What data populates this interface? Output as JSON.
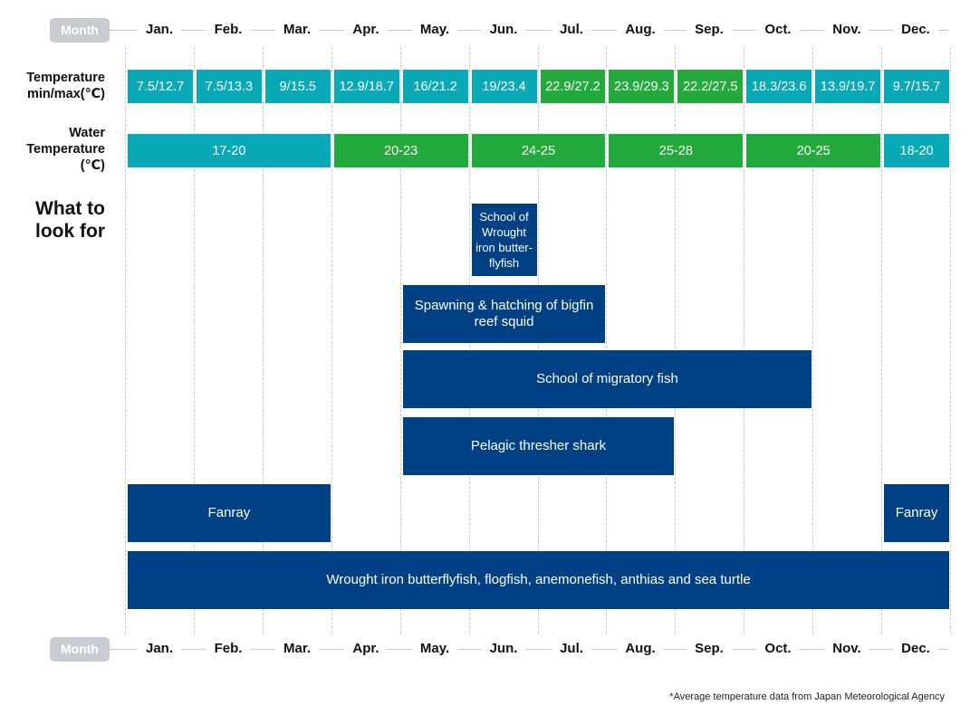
{
  "chart_data": {
    "type": "table",
    "month_tag": "Month",
    "months": [
      "Jan.",
      "Feb.",
      "Mar.",
      "Apr.",
      "May.",
      "Jun.",
      "Jul.",
      "Aug.",
      "Sep.",
      "Oct.",
      "Nov.",
      "Dec."
    ],
    "rows": {
      "temperature": {
        "label": "Temperature min/max(℃)",
        "cells": [
          {
            "text": "7.5/12.7",
            "start": 1,
            "end": 1,
            "color": "#0aa9b8"
          },
          {
            "text": "7.5/13.3",
            "start": 2,
            "end": 2,
            "color": "#0aa9b8"
          },
          {
            "text": "9/15.5",
            "start": 3,
            "end": 3,
            "color": "#0aa9b8"
          },
          {
            "text": "12.9/18.7",
            "start": 4,
            "end": 4,
            "color": "#0aa9b8"
          },
          {
            "text": "16/21.2",
            "start": 5,
            "end": 5,
            "color": "#0aa9b8"
          },
          {
            "text": "19/23.4",
            "start": 6,
            "end": 6,
            "color": "#0aa9b8"
          },
          {
            "text": "22.9/27.2",
            "start": 7,
            "end": 7,
            "color": "#22aa3c"
          },
          {
            "text": "23.9/29.3",
            "start": 8,
            "end": 8,
            "color": "#22aa3c"
          },
          {
            "text": "22.2/27.5",
            "start": 9,
            "end": 9,
            "color": "#22aa3c"
          },
          {
            "text": "18.3/23.6",
            "start": 10,
            "end": 10,
            "color": "#0aa9b8"
          },
          {
            "text": "13.9/19.7",
            "start": 11,
            "end": 11,
            "color": "#0aa9b8"
          },
          {
            "text": "9.7/15.7",
            "start": 12,
            "end": 12,
            "color": "#0aa9b8"
          }
        ]
      },
      "water_temperature": {
        "label": "Water Temperature (℃)",
        "cells": [
          {
            "text": "17-20",
            "start": 1,
            "end": 3,
            "color": "#0aa9b8"
          },
          {
            "text": "20-23",
            "start": 4,
            "end": 5,
            "color": "#22aa3c"
          },
          {
            "text": "24-25",
            "start": 6,
            "end": 7,
            "color": "#22aa3c"
          },
          {
            "text": "25-28",
            "start": 8,
            "end": 9,
            "color": "#22aa3c"
          },
          {
            "text": "20-25",
            "start": 10,
            "end": 11,
            "color": "#22aa3c"
          },
          {
            "text": "18-20",
            "start": 12,
            "end": 12,
            "color": "#0aa9b8"
          }
        ]
      }
    },
    "look_for_label": "What to look for",
    "events": [
      {
        "text": "School of Wrought iron butter-flyfish",
        "start": 6,
        "end": 6,
        "row": 0
      },
      {
        "text": "Spawning & hatching of bigfin reef squid",
        "start": 5,
        "end": 7,
        "row": 1
      },
      {
        "text": "School of migratory fish",
        "start": 5,
        "end": 10,
        "row": 2
      },
      {
        "text": "Pelagic thresher shark",
        "start": 5,
        "end": 8,
        "row": 3
      },
      {
        "text": "Fanray",
        "start": 1,
        "end": 3,
        "row": 4
      },
      {
        "text": "Fanray",
        "start": 12,
        "end": 12,
        "row": 4
      },
      {
        "text": "Wrought iron butterflyfish, flogfish, anemonefish, anthias and sea turtle",
        "start": 1,
        "end": 12,
        "row": 5
      }
    ],
    "colors": {
      "event": "#004185",
      "cool": "#0aa9b8",
      "warm": "#22aa3c",
      "pill": "#c8ccd2"
    },
    "footnote": "*Average temperature data from Japan Meteorological Agency"
  }
}
